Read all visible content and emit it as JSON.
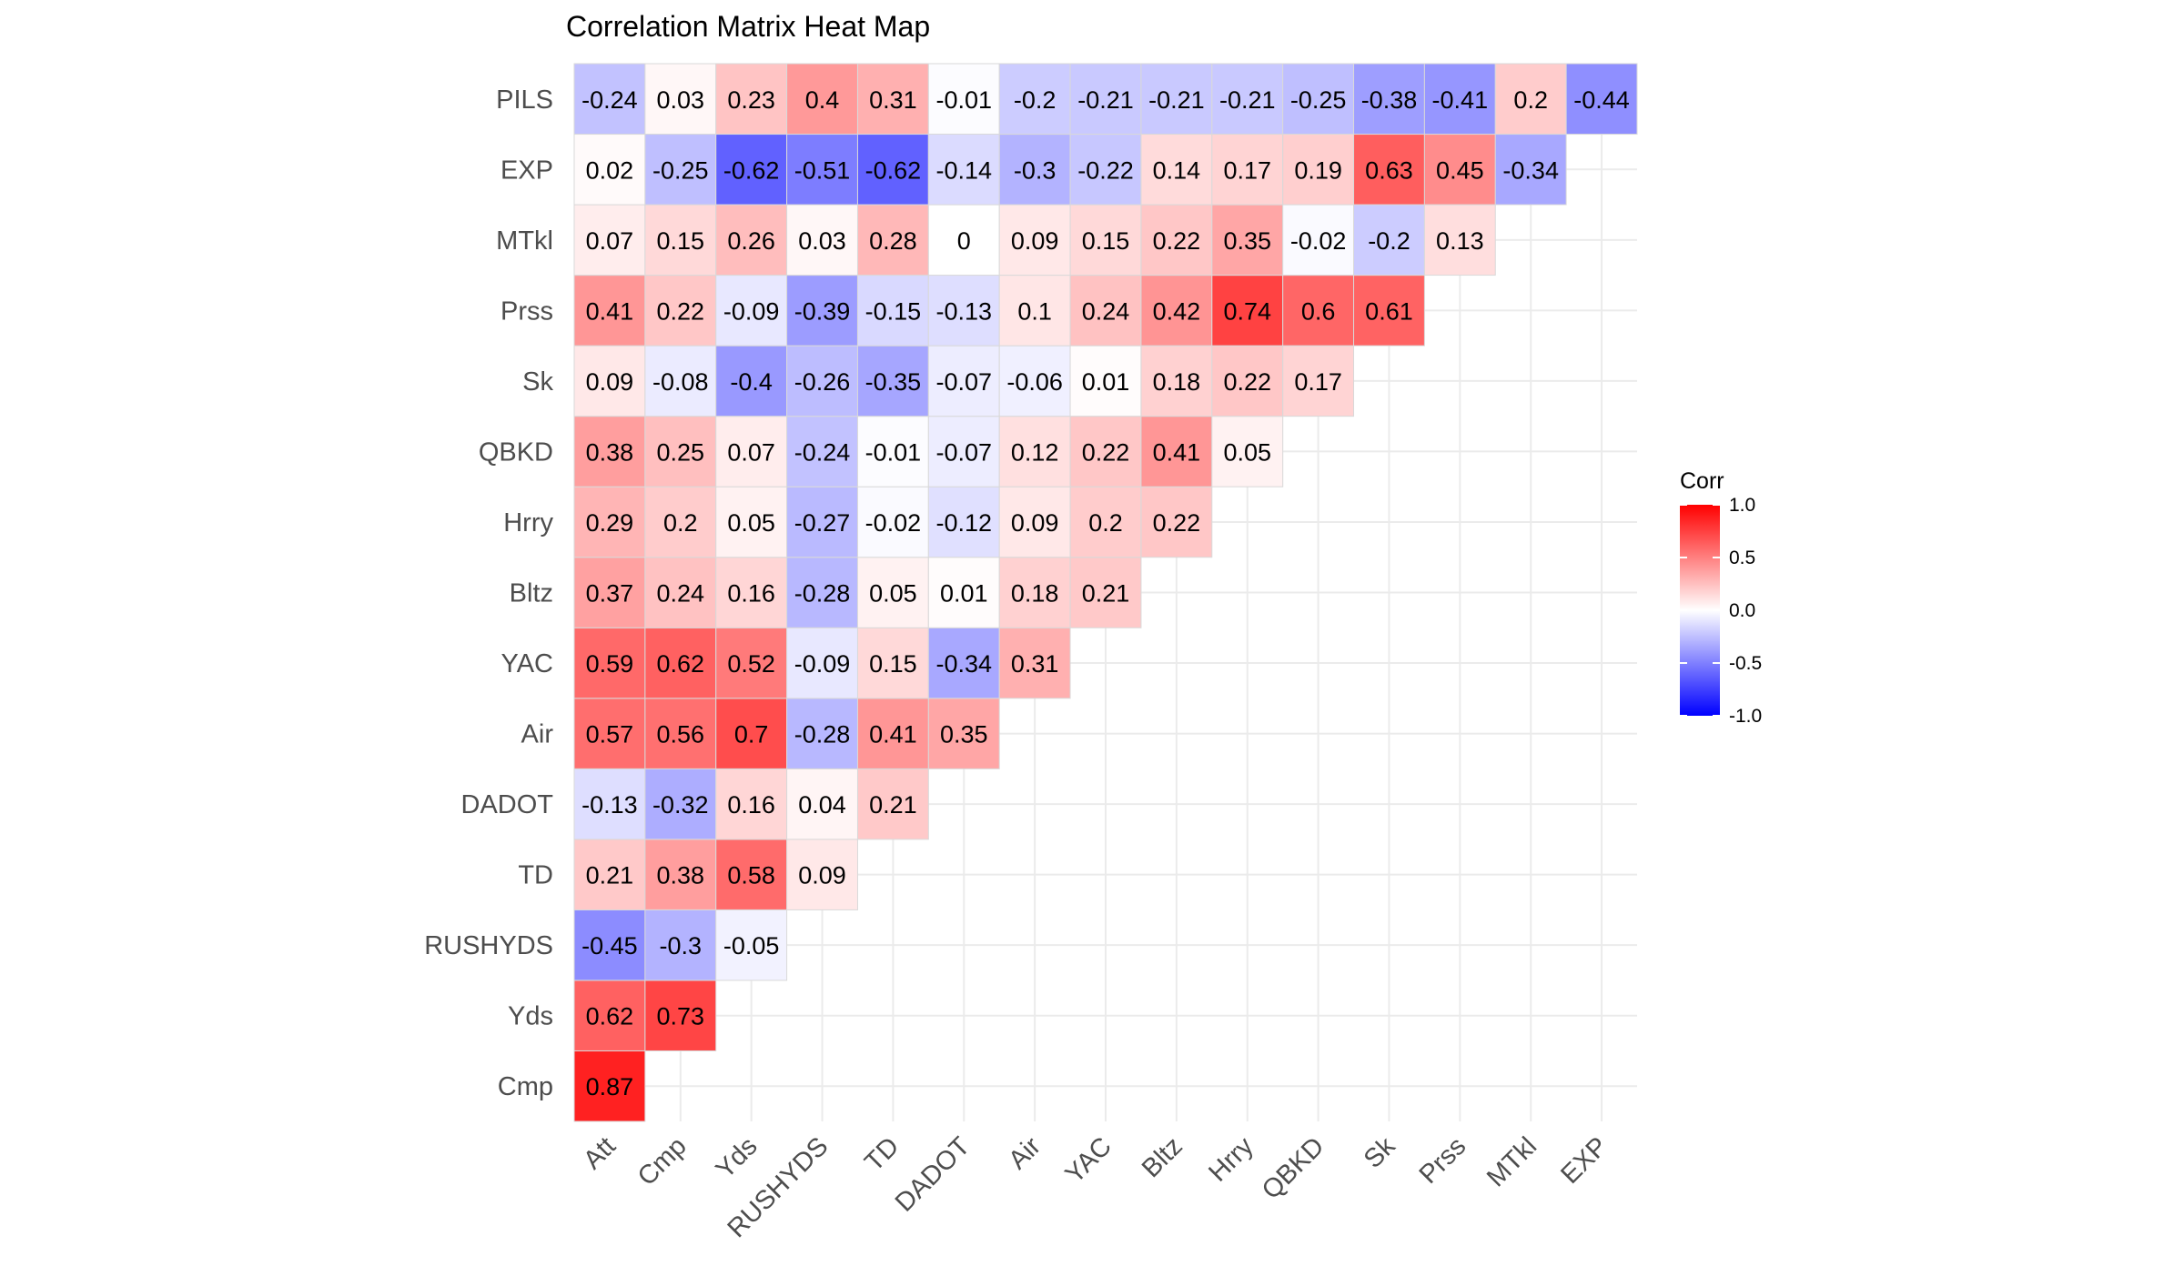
{
  "chart_data": {
    "type": "heatmap",
    "title": "Correlation Matrix Heat Map",
    "xlabel": "",
    "ylabel": "",
    "x_labels": [
      "Att",
      "Cmp",
      "Yds",
      "RUSHYDS",
      "TD",
      "DADOT",
      "Air",
      "YAC",
      "Bltz",
      "Hrry",
      "QBKD",
      "Sk",
      "Prss",
      "MTkl",
      "EXP"
    ],
    "y_labels": [
      "Cmp",
      "Yds",
      "RUSHYDS",
      "TD",
      "DADOT",
      "Air",
      "YAC",
      "Bltz",
      "Hrry",
      "QBKD",
      "Sk",
      "Prss",
      "MTkl",
      "EXP",
      "PILS"
    ],
    "values": [
      [
        0.87
      ],
      [
        0.62,
        0.73
      ],
      [
        -0.45,
        -0.3,
        -0.05
      ],
      [
        0.21,
        0.38,
        0.58,
        0.09
      ],
      [
        -0.13,
        -0.32,
        0.16,
        0.04,
        0.21
      ],
      [
        0.57,
        0.56,
        0.7,
        -0.28,
        0.41,
        0.35
      ],
      [
        0.59,
        0.62,
        0.52,
        -0.09,
        0.15,
        -0.34,
        0.31
      ],
      [
        0.37,
        0.24,
        0.16,
        -0.28,
        0.05,
        0.01,
        0.18,
        0.21
      ],
      [
        0.29,
        0.2,
        0.05,
        -0.27,
        -0.02,
        -0.12,
        0.09,
        0.2,
        0.22
      ],
      [
        0.38,
        0.25,
        0.07,
        -0.24,
        -0.01,
        -0.07,
        0.12,
        0.22,
        0.41,
        0.05
      ],
      [
        0.09,
        -0.08,
        -0.4,
        -0.26,
        -0.35,
        -0.07,
        -0.06,
        0.01,
        0.18,
        0.22,
        0.17
      ],
      [
        0.41,
        0.22,
        -0.09,
        -0.39,
        -0.15,
        -0.13,
        0.1,
        0.24,
        0.42,
        0.74,
        0.6,
        0.61
      ],
      [
        0.07,
        0.15,
        0.26,
        0.03,
        0.28,
        0,
        0.09,
        0.15,
        0.22,
        0.35,
        -0.02,
        -0.2,
        0.13
      ],
      [
        0.02,
        -0.25,
        -0.62,
        -0.51,
        -0.62,
        -0.14,
        -0.3,
        -0.22,
        0.14,
        0.17,
        0.19,
        0.63,
        0.45,
        -0.34
      ],
      [
        -0.24,
        0.03,
        0.23,
        0.4,
        0.31,
        -0.01,
        -0.2,
        -0.21,
        -0.21,
        -0.21,
        -0.25,
        -0.38,
        -0.41,
        0.2,
        -0.44
      ]
    ],
    "legend": {
      "title": "Corr",
      "ticks": [
        "1.0",
        "0.5",
        "0.0",
        "-0.5",
        "-1.0"
      ],
      "range": [
        -1,
        1
      ],
      "placement": "right"
    },
    "colors": {
      "high": "#ff0000",
      "mid": "#ffffff",
      "low": "#0000ff"
    },
    "grid": true
  }
}
